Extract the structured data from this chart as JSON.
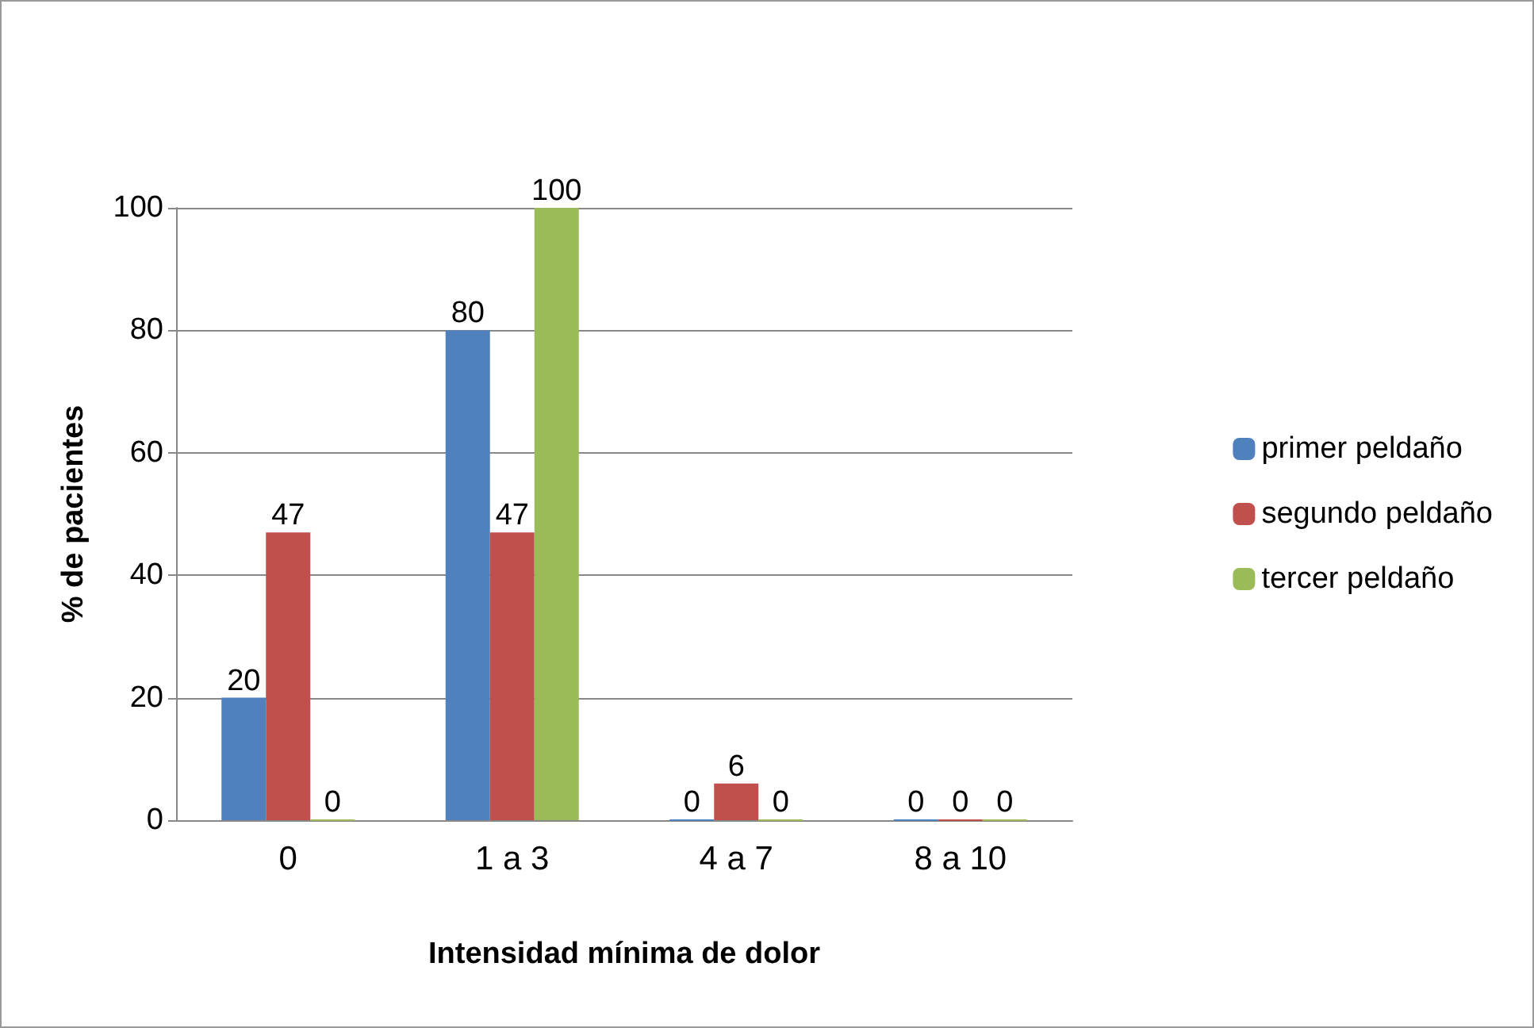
{
  "chart_data": {
    "type": "bar",
    "xlabel": "Intensidad mínima de dolor",
    "ylabel": "% de pacientes",
    "categories": [
      "0",
      "1 a 3",
      "4 a 7",
      "8 a 10"
    ],
    "series": [
      {
        "name": "primer peldaño",
        "color": "#4f81bd",
        "values": [
          20,
          80,
          0,
          0
        ]
      },
      {
        "name": "segundo peldaño",
        "color": "#c0504d",
        "values": [
          47,
          47,
          6,
          0
        ]
      },
      {
        "name": "tercer peldaño",
        "color": "#9bbb59",
        "values": [
          0,
          100,
          0,
          0
        ]
      }
    ],
    "ylim": [
      0,
      100
    ],
    "yticks": [
      0,
      20,
      40,
      60,
      80,
      100
    ],
    "grid": "y",
    "legend": "right",
    "data_labels": true
  }
}
